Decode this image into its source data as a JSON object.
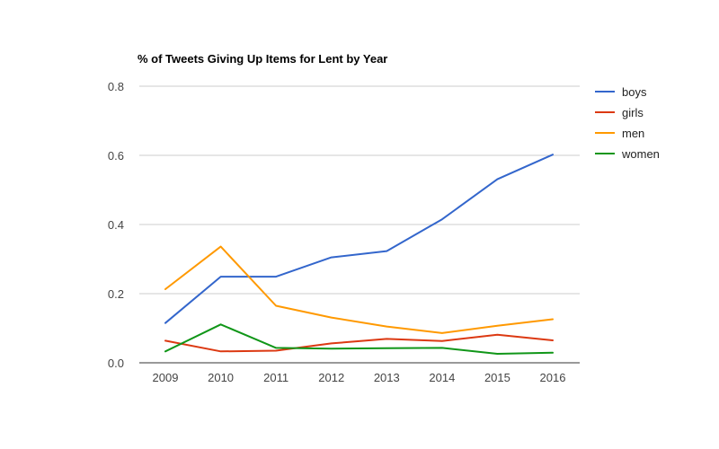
{
  "chart_data": {
    "type": "line",
    "title": "% of Tweets Giving Up Items for Lent by Year",
    "xlabel": "",
    "ylabel": "",
    "x": [
      "2009",
      "2010",
      "2011",
      "2012",
      "2013",
      "2014",
      "2015",
      "2016"
    ],
    "ylim": [
      0,
      0.8
    ],
    "yticks": [
      "0.0",
      "0.2",
      "0.4",
      "0.6",
      "0.8"
    ],
    "grid": true,
    "legend_position": "right",
    "series": [
      {
        "name": "boys",
        "color": "#3366cc",
        "values": [
          0.115,
          0.249,
          0.249,
          0.305,
          0.323,
          0.415,
          0.531,
          0.602
        ]
      },
      {
        "name": "girls",
        "color": "#dc3912",
        "values": [
          0.064,
          0.033,
          0.035,
          0.056,
          0.069,
          0.063,
          0.081,
          0.065
        ]
      },
      {
        "name": "men",
        "color": "#ff9900",
        "values": [
          0.213,
          0.336,
          0.165,
          0.131,
          0.105,
          0.086,
          0.107,
          0.126
        ]
      },
      {
        "name": "women",
        "color": "#109618",
        "values": [
          0.033,
          0.111,
          0.043,
          0.041,
          0.042,
          0.043,
          0.026,
          0.029
        ]
      }
    ]
  }
}
